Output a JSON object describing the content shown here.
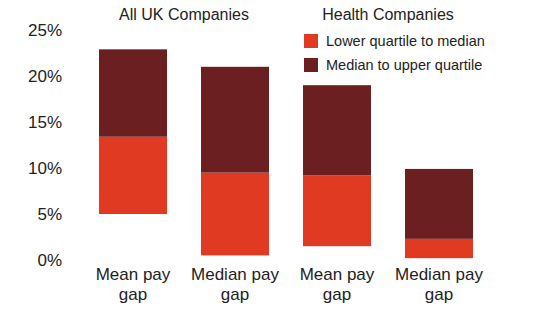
{
  "chart_data": {
    "type": "bar",
    "stacked": true,
    "annotations": [
      "All UK Companies",
      "Health Companies"
    ],
    "categories": [
      "Mean pay gap",
      "Median pay gap",
      "Mean pay gap",
      "Median pay gap"
    ],
    "bases": [
      5,
      0.5,
      1.5,
      0.2
    ],
    "series": [
      {
        "name": "Lower quartile to median",
        "color": "#e03a23",
        "values": [
          8.4,
          9,
          7.7,
          2.1
        ]
      },
      {
        "name": "Median to upper quartile",
        "color": "#6b1f20",
        "values": [
          9.5,
          11.5,
          9.8,
          7.6
        ]
      }
    ],
    "ylim": [
      0,
      25
    ],
    "yticks": [
      {
        "value": 0,
        "label": "0%"
      },
      {
        "value": 5,
        "label": "5%"
      },
      {
        "value": 10,
        "label": "10%"
      },
      {
        "value": 15,
        "label": "15%"
      },
      {
        "value": 20,
        "label": "20%"
      },
      {
        "value": 25,
        "label": "25%"
      }
    ],
    "grid": false,
    "legend": "upper right"
  }
}
